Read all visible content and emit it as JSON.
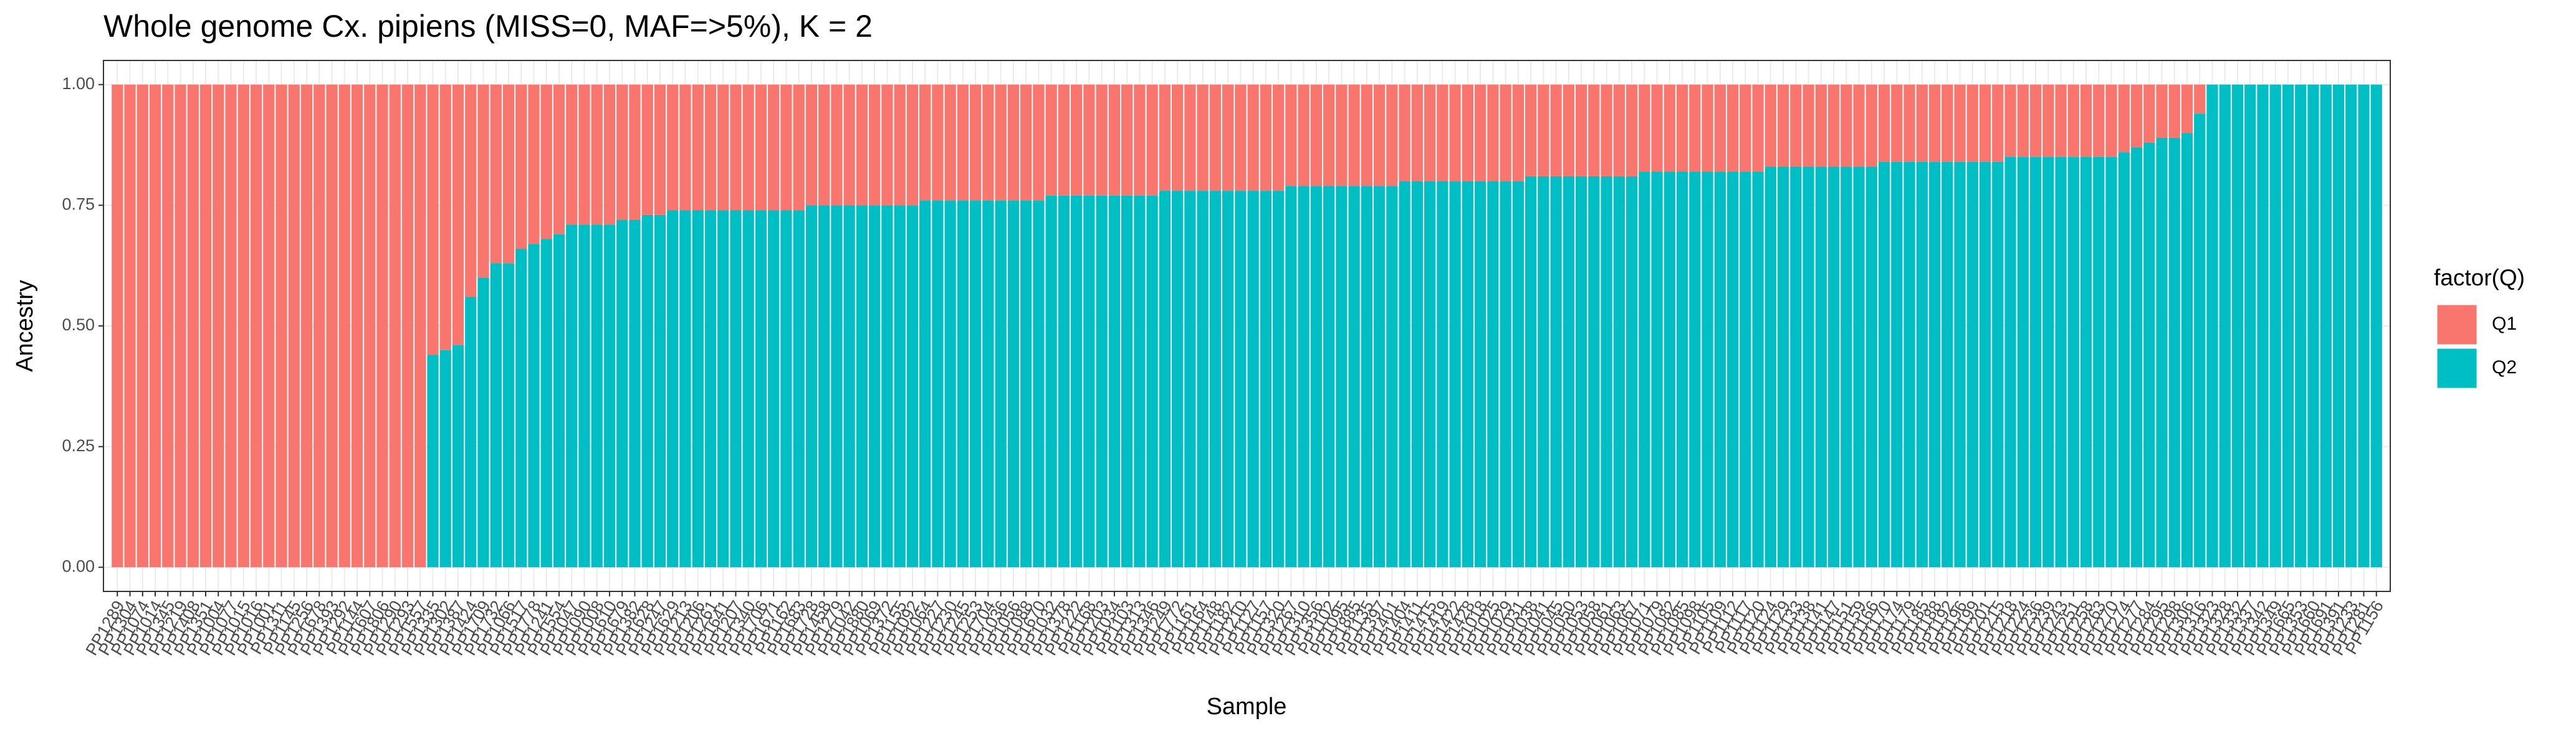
{
  "chart_data": {
    "type": "bar",
    "stacked": true,
    "title": "Whole genome Cx. pipiens (MISS=0, MAF=>5%), K = 2",
    "xlabel": "Sample",
    "ylabel": "Ancestry",
    "legend_title": "factor(Q)",
    "grid": true,
    "ylim": [
      -0.05,
      1.05
    ],
    "yticks": [
      {
        "value": 0,
        "label": "0.00"
      },
      {
        "value": 0.25,
        "label": "0.25"
      },
      {
        "value": 0.5,
        "label": "0.50"
      },
      {
        "value": 0.75,
        "label": "0.75"
      },
      {
        "value": 1,
        "label": "1.00"
      }
    ],
    "categories": [
      "PP1289",
      "PP1304",
      "PP1074",
      "PP1014",
      "PP1345",
      "PP1219",
      "PP1408",
      "PP1351",
      "PP1004",
      "PP1077",
      "PP1015",
      "PP1016",
      "PP1001",
      "PP1311",
      "PP1145",
      "PP1256",
      "PP1678",
      "PP1393",
      "PP1292",
      "PP1144",
      "PP1607",
      "PP1806",
      "PP1290",
      "PP1293",
      "PP1557",
      "PP1335",
      "PP1302",
      "PP1387",
      "PP1424",
      "PP1709",
      "PP1732",
      "PP1066",
      "PP1517",
      "PP1778",
      "PP1241",
      "PP1554",
      "PP1047",
      "PP1090",
      "PP1008",
      "PP1610",
      "PP1679",
      "PP1382",
      "PP1628",
      "PP1247",
      "PP1629",
      "PP1213",
      "PP1206",
      "PP1261",
      "PP1641",
      "PP1207",
      "PP1340",
      "PP1706",
      "PP1671",
      "PP1162",
      "PP1683",
      "PP1728",
      "PP1458",
      "PP1279",
      "PP1042",
      "PP1880",
      "PP1069",
      "PP1372",
      "PP1155",
      "PP1092",
      "PP1064",
      "PP1227",
      "PP1230",
      "PP1245",
      "PP1253",
      "PP1704",
      "PP1036",
      "PP1056",
      "PP1088",
      "PP1670",
      "PP1032",
      "PP1378",
      "PP1222",
      "PP1168",
      "PP1203",
      "PP1034",
      "PP1103",
      "PP1313",
      "PP1346",
      "PP1249",
      "PP1772",
      "PP1161",
      "PP1164",
      "PP1148",
      "PP1182",
      "PP1210",
      "PP1127",
      "PP1157",
      "PP1320",
      "PP1267",
      "PP1310",
      "PP1356",
      "PP1102",
      "PP1095",
      "PP1885",
      "PP1135",
      "PP1397",
      "PP1401",
      "PP1404",
      "PP1411",
      "PP1415",
      "PP1419",
      "PP1422",
      "PP1428",
      "PP1018",
      "PP1025",
      "PP1029",
      "PP1031",
      "PP1038",
      "PP1041",
      "PP1045",
      "PP1050",
      "PP1053",
      "PP1058",
      "PP1061",
      "PP1063",
      "PP1067",
      "PP1071",
      "PP1079",
      "PP1082",
      "PP1085",
      "PP1098",
      "PP1105",
      "PP1109",
      "PP1112",
      "PP1117",
      "PP1120",
      "PP1124",
      "PP1129",
      "PP1133",
      "PP1138",
      "PP1141",
      "PP1147",
      "PP1151",
      "PP1159",
      "PP1166",
      "PP1170",
      "PP1174",
      "PP1179",
      "PP1185",
      "PP1188",
      "PP1192",
      "PP1196",
      "PP1199",
      "PP1201",
      "PP1215",
      "PP1218",
      "PP1224",
      "PP1236",
      "PP1239",
      "PP1243",
      "PP1251",
      "PP1258",
      "PP1263",
      "PP1270",
      "PP1274",
      "PP1277",
      "PP1284",
      "PP1295",
      "PP1298",
      "PP1306",
      "PP1316",
      "PP1323",
      "PP1328",
      "PP1332",
      "PP1337",
      "PP1342",
      "PP1349",
      "PP1665",
      "PP1353",
      "PP1660",
      "PP1691",
      "PP1391",
      "PP1233",
      "PP1281",
      "PP1156"
    ],
    "series": [
      {
        "name": "Q1",
        "color": "#F8766D",
        "values": [
          1,
          1,
          1,
          1,
          1,
          1,
          1,
          1,
          1,
          1,
          1,
          1,
          1,
          1,
          1,
          1,
          1,
          1,
          1,
          1,
          1,
          1,
          1,
          1,
          1,
          0.56,
          0.55,
          0.54,
          0.44,
          0.4,
          0.37,
          0.37,
          0.34,
          0.33,
          0.32,
          0.31,
          0.29,
          0.29,
          0.29,
          0.29,
          0.28,
          0.28,
          0.27,
          0.27,
          0.26,
          0.26,
          0.26,
          0.26,
          0.26,
          0.26,
          0.26,
          0.26,
          0.26,
          0.26,
          0.26,
          0.25,
          0.25,
          0.25,
          0.25,
          0.25,
          0.25,
          0.25,
          0.25,
          0.25,
          0.24,
          0.24,
          0.24,
          0.24,
          0.24,
          0.24,
          0.24,
          0.24,
          0.24,
          0.24,
          0.23,
          0.23,
          0.23,
          0.23,
          0.23,
          0.23,
          0.23,
          0.23,
          0.23,
          0.22,
          0.22,
          0.22,
          0.22,
          0.22,
          0.22,
          0.22,
          0.22,
          0.22,
          0.22,
          0.21,
          0.21,
          0.21,
          0.21,
          0.21,
          0.21,
          0.21,
          0.21,
          0.21,
          0.2,
          0.2,
          0.2,
          0.2,
          0.2,
          0.2,
          0.2,
          0.2,
          0.2,
          0.2,
          0.19,
          0.19,
          0.19,
          0.19,
          0.19,
          0.19,
          0.19,
          0.19,
          0.19,
          0.18,
          0.18,
          0.18,
          0.18,
          0.18,
          0.18,
          0.18,
          0.18,
          0.18,
          0.18,
          0.17,
          0.17,
          0.17,
          0.17,
          0.17,
          0.17,
          0.17,
          0.17,
          0.17,
          0.16,
          0.16,
          0.16,
          0.16,
          0.16,
          0.16,
          0.16,
          0.16,
          0.16,
          0.16,
          0.15,
          0.15,
          0.15,
          0.15,
          0.15,
          0.15,
          0.15,
          0.15,
          0.15,
          0.14,
          0.13,
          0.12,
          0.11,
          0.11,
          0.1,
          0.06,
          0,
          0,
          0,
          0,
          0,
          0,
          0,
          0,
          0,
          0,
          0,
          0,
          0,
          0
        ]
      },
      {
        "name": "Q2",
        "color": "#00BFC4",
        "values": [
          0,
          0,
          0,
          0,
          0,
          0,
          0,
          0,
          0,
          0,
          0,
          0,
          0,
          0,
          0,
          0,
          0,
          0,
          0,
          0,
          0,
          0,
          0,
          0,
          0,
          0.44,
          0.45,
          0.46,
          0.56,
          0.6,
          0.63,
          0.63,
          0.66,
          0.67,
          0.68,
          0.69,
          0.71,
          0.71,
          0.71,
          0.71,
          0.72,
          0.72,
          0.73,
          0.73,
          0.74,
          0.74,
          0.74,
          0.74,
          0.74,
          0.74,
          0.74,
          0.74,
          0.74,
          0.74,
          0.74,
          0.75,
          0.75,
          0.75,
          0.75,
          0.75,
          0.75,
          0.75,
          0.75,
          0.75,
          0.76,
          0.76,
          0.76,
          0.76,
          0.76,
          0.76,
          0.76,
          0.76,
          0.76,
          0.76,
          0.77,
          0.77,
          0.77,
          0.77,
          0.77,
          0.77,
          0.77,
          0.77,
          0.77,
          0.78,
          0.78,
          0.78,
          0.78,
          0.78,
          0.78,
          0.78,
          0.78,
          0.78,
          0.78,
          0.79,
          0.79,
          0.79,
          0.79,
          0.79,
          0.79,
          0.79,
          0.79,
          0.79,
          0.8,
          0.8,
          0.8,
          0.8,
          0.8,
          0.8,
          0.8,
          0.8,
          0.8,
          0.8,
          0.81,
          0.81,
          0.81,
          0.81,
          0.81,
          0.81,
          0.81,
          0.81,
          0.81,
          0.82,
          0.82,
          0.82,
          0.82,
          0.82,
          0.82,
          0.82,
          0.82,
          0.82,
          0.82,
          0.83,
          0.83,
          0.83,
          0.83,
          0.83,
          0.83,
          0.83,
          0.83,
          0.83,
          0.84,
          0.84,
          0.84,
          0.84,
          0.84,
          0.84,
          0.84,
          0.84,
          0.84,
          0.84,
          0.85,
          0.85,
          0.85,
          0.85,
          0.85,
          0.85,
          0.85,
          0.85,
          0.85,
          0.86,
          0.87,
          0.88,
          0.89,
          0.89,
          0.9,
          0.94,
          1,
          1,
          1,
          1,
          1,
          1,
          1,
          1,
          1,
          1,
          1,
          1,
          1,
          1
        ]
      }
    ]
  }
}
